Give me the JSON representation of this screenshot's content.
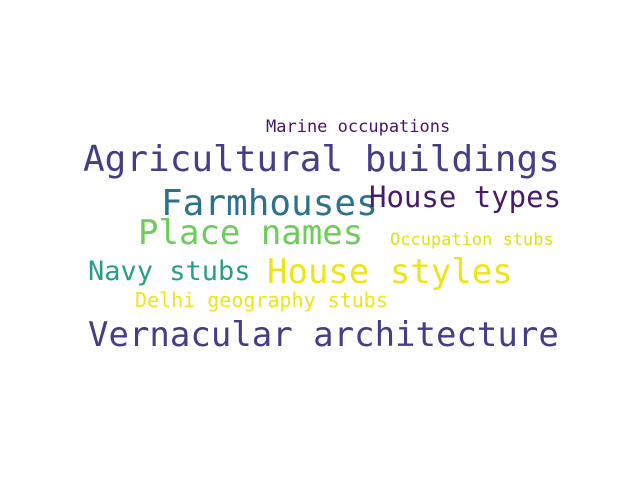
{
  "words": [
    {
      "text": "Marine occupations",
      "color": "#4a1466"
    },
    {
      "text": "Agricultural buildings",
      "color": "#433e85"
    },
    {
      "text": "Farmhouses",
      "color": "#2c728e"
    },
    {
      "text": "House types",
      "color": "#481a6c"
    },
    {
      "text": "Place names",
      "color": "#6ccd5a"
    },
    {
      "text": "Occupation stubs",
      "color": "#dde318"
    },
    {
      "text": "Navy stubs",
      "color": "#2a9d8a"
    },
    {
      "text": "House styles",
      "color": "#ede51b"
    },
    {
      "text": "Delhi geography stubs",
      "color": "#ede51b"
    },
    {
      "text": "Vernacular architecture",
      "color": "#433e85"
    }
  ]
}
